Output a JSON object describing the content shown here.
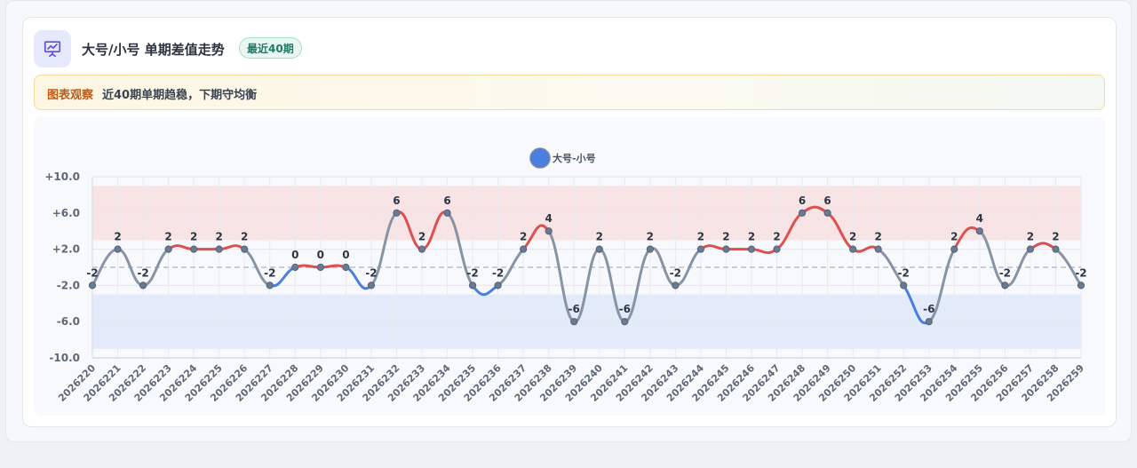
{
  "header": {
    "title": "大号/小号 单期差值走势",
    "badge": "最近40期",
    "icon": "presentation-chart-icon"
  },
  "notice": {
    "label": "图表观察",
    "text": "近40期单期趋稳，下期守均衡"
  },
  "colors": {
    "positive": "#dc5050",
    "negative": "#4a7fe0",
    "neutral": "#8794a5",
    "upper_band": "#f8e3e5",
    "lower_band": "#e3eaf9",
    "legend_dot": "#4a7fe0"
  },
  "chart_data": {
    "type": "line",
    "title": "",
    "xlabel": "",
    "ylabel": "",
    "legend": {
      "position": "top-center"
    },
    "ylim": [
      -10,
      10
    ],
    "yticks": [
      10,
      6,
      2,
      -2,
      -6,
      -10
    ],
    "ytick_labels": [
      "+10.0",
      "+6.0",
      "+2.0",
      "-2.0",
      "-6.0",
      "-10.0"
    ],
    "grid": true,
    "reference_line": 0,
    "bands": [
      {
        "name": "upper",
        "from": 3,
        "to": 9
      },
      {
        "name": "lower",
        "from": -9,
        "to": -3
      }
    ],
    "categories": [
      "2026220",
      "2026221",
      "2026222",
      "2026223",
      "2026224",
      "2026225",
      "2026226",
      "2026227",
      "2026228",
      "2026229",
      "2026230",
      "2026231",
      "2026232",
      "2026233",
      "2026234",
      "2026235",
      "2026236",
      "2026237",
      "2026238",
      "2026239",
      "2026240",
      "2026241",
      "2026242",
      "2026243",
      "2026244",
      "2026245",
      "2026246",
      "2026247",
      "2026248",
      "2026249",
      "2026250",
      "2026251",
      "2026252",
      "2026253",
      "2026254",
      "2026255",
      "2026256",
      "2026257",
      "2026258",
      "2026259"
    ],
    "series": [
      {
        "name": "大号-小号",
        "values": [
          -2,
          2,
          -2,
          2,
          2,
          2,
          2,
          -2,
          0,
          0,
          0,
          -2,
          6,
          2,
          6,
          -2,
          -2,
          2,
          4,
          -6,
          2,
          -6,
          2,
          -2,
          2,
          2,
          2,
          2,
          6,
          6,
          2,
          2,
          -2,
          -6,
          2,
          4,
          -2,
          2,
          2,
          -2
        ],
        "labels": [
          "-2",
          "2",
          "-2",
          "2",
          "2",
          "2",
          "2",
          "-2",
          "0",
          "0",
          "0",
          "-2",
          "6",
          "2",
          "6",
          "-2",
          "-2",
          "2",
          "4",
          "-6",
          "2",
          "-6",
          "2",
          "-2",
          "2",
          "2",
          "2",
          "2",
          "6",
          "6",
          "2",
          "2",
          "-2",
          "-6",
          "2",
          "4",
          "-2",
          "2",
          "2",
          "-2"
        ]
      }
    ]
  }
}
